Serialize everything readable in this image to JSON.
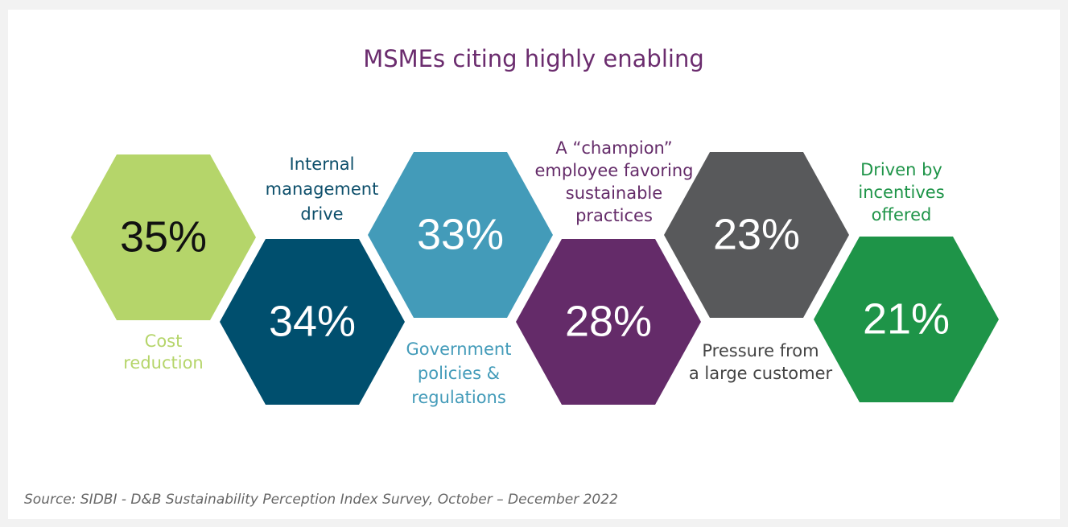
{
  "title": "MSMEs citing highly enabling",
  "items": [
    {
      "value": "35%",
      "label": [
        "Cost",
        "reduction"
      ],
      "color": "#b5d56a",
      "text_color": "#111111",
      "label_color": "#b5d56a"
    },
    {
      "value": "34%",
      "label": [
        "Internal",
        "management",
        "drive"
      ],
      "color": "#004f6e",
      "text_color": "#ffffff",
      "label_color": "#0d4f6b"
    },
    {
      "value": "33%",
      "label": [
        "Government",
        "policies &",
        "regulations"
      ],
      "color": "#439bb9",
      "text_color": "#ffffff",
      "label_color": "#439bb9"
    },
    {
      "value": "28%",
      "label": [
        "A “champion”",
        "employee favoring",
        "sustainable",
        "practices"
      ],
      "color": "#642b69",
      "text_color": "#ffffff",
      "label_color": "#642b69"
    },
    {
      "value": "23%",
      "label": [
        "Pressure from",
        "a large customer"
      ],
      "color": "#58595b",
      "text_color": "#ffffff",
      "label_color": "#444444"
    },
    {
      "value": "21%",
      "label": [
        "Driven by",
        "incentives",
        "offered"
      ],
      "color": "#1e9448",
      "text_color": "#ffffff",
      "label_color": "#1e9448"
    }
  ],
  "source": "Source: SIDBI - D&B Sustainability Perception Index Survey, October – December 2022"
}
